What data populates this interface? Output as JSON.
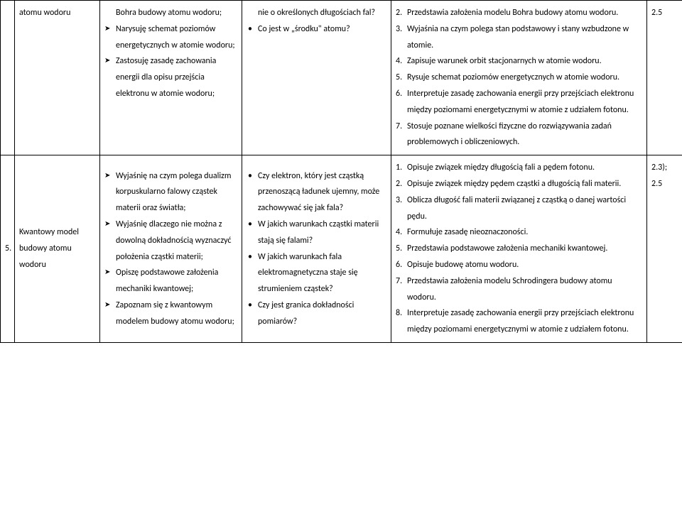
{
  "rows": [
    {
      "num": "",
      "topic": "atomu wodoru",
      "objectives": [
        {
          "type": "plain",
          "text": "Bohra budowy atomu wodoru;"
        },
        {
          "type": "chev",
          "text": "Narysuję schemat poziomów energetycznych w atomie wodoru;"
        },
        {
          "type": "chev",
          "text": "Zastosuję zasadę zachowania energii dla opisu przejścia elektronu w atomie wodoru;"
        }
      ],
      "questions": [
        {
          "type": "plain",
          "text": "nie o określonych długościach fal?"
        },
        {
          "type": "bullet",
          "text": "Co jest w „środku\" atomu?"
        }
      ],
      "outcomes": [
        {
          "n": "2.",
          "text": "Przedstawia założenia modelu Bohra budowy atomu wodoru."
        },
        {
          "n": "3.",
          "text": "Wyjaśnia na czym polega stan podstawowy i stany wzbudzone w atomie."
        },
        {
          "n": "4.",
          "text": "Zapisuje warunek orbit stacjonarnych w atomie wodoru."
        },
        {
          "n": "5.",
          "text": "Rysuje schemat poziomów energetycznych w atomie wodoru."
        },
        {
          "n": "6.",
          "text": "Interpretuje zasadę zachowania energii przy przejściach elektronu między poziomami energetycznymi w atomie z udziałem fotonu."
        },
        {
          "n": "7.",
          "text": "Stosuje poznane wielkości fizyczne do rozwiązywania zadań problemowych i obliczeniowych."
        }
      ],
      "refs": [
        "2.5"
      ]
    },
    {
      "num": "5.",
      "topic": "Kwantowy model budowy atomu wodoru",
      "objectives": [
        {
          "type": "chev",
          "text": "Wyjaśnię na czym polega dualizm korpuskularno falowy cząstek materii oraz światła;"
        },
        {
          "type": "chev",
          "text": "Wyjaśnię dlaczego nie można z dowolną dokładnością wyznaczyć położenia cząstki materii;"
        },
        {
          "type": "chev",
          "text": "Opiszę podstawowe założenia mechaniki kwantowej;"
        },
        {
          "type": "chev",
          "text": "Zapoznam się z kwantowym modelem budowy atomu wodoru;"
        }
      ],
      "questions": [
        {
          "type": "bullet",
          "text": "Czy elektron, który jest cząstką przenoszącą ładunek ujemny, może zachowywać się jak fala?"
        },
        {
          "type": "bullet",
          "text": "W jakich warunkach cząstki materii stają się falami?"
        },
        {
          "type": "bullet",
          "text": "W jakich warunkach fala elektromagnetyczna staje się strumieniem cząstek?"
        },
        {
          "type": "bullet",
          "text": "Czy jest granica dokładności pomiarów?"
        }
      ],
      "outcomes": [
        {
          "n": "1.",
          "text": "Opisuje związek między długością fali a pędem fotonu."
        },
        {
          "n": "2.",
          "text": "Opisuje związek między pędem cząstki a długością fali materii."
        },
        {
          "n": "3.",
          "text": "Oblicza długość fali materii związanej z cząstką o danej wartości pędu."
        },
        {
          "n": "4.",
          "text": "Formułuje zasadę nieoznaczoności."
        },
        {
          "n": "5.",
          "text": "Przedstawia podstawowe założenia mechaniki kwantowej."
        },
        {
          "n": "6.",
          "text": "Opisuje budowę atomu wodoru."
        },
        {
          "n": "7.",
          "text": "Przedstawia założenia modelu Schrodingera budowy atomu wodoru."
        },
        {
          "n": "8.",
          "text": "Interpretuje zasadę zachowania energii przy przejściach elektronu między poziomami energetycznymi w atomie z udziałem fotonu."
        }
      ],
      "refs": [
        "2.3);",
        "2.5"
      ]
    }
  ]
}
